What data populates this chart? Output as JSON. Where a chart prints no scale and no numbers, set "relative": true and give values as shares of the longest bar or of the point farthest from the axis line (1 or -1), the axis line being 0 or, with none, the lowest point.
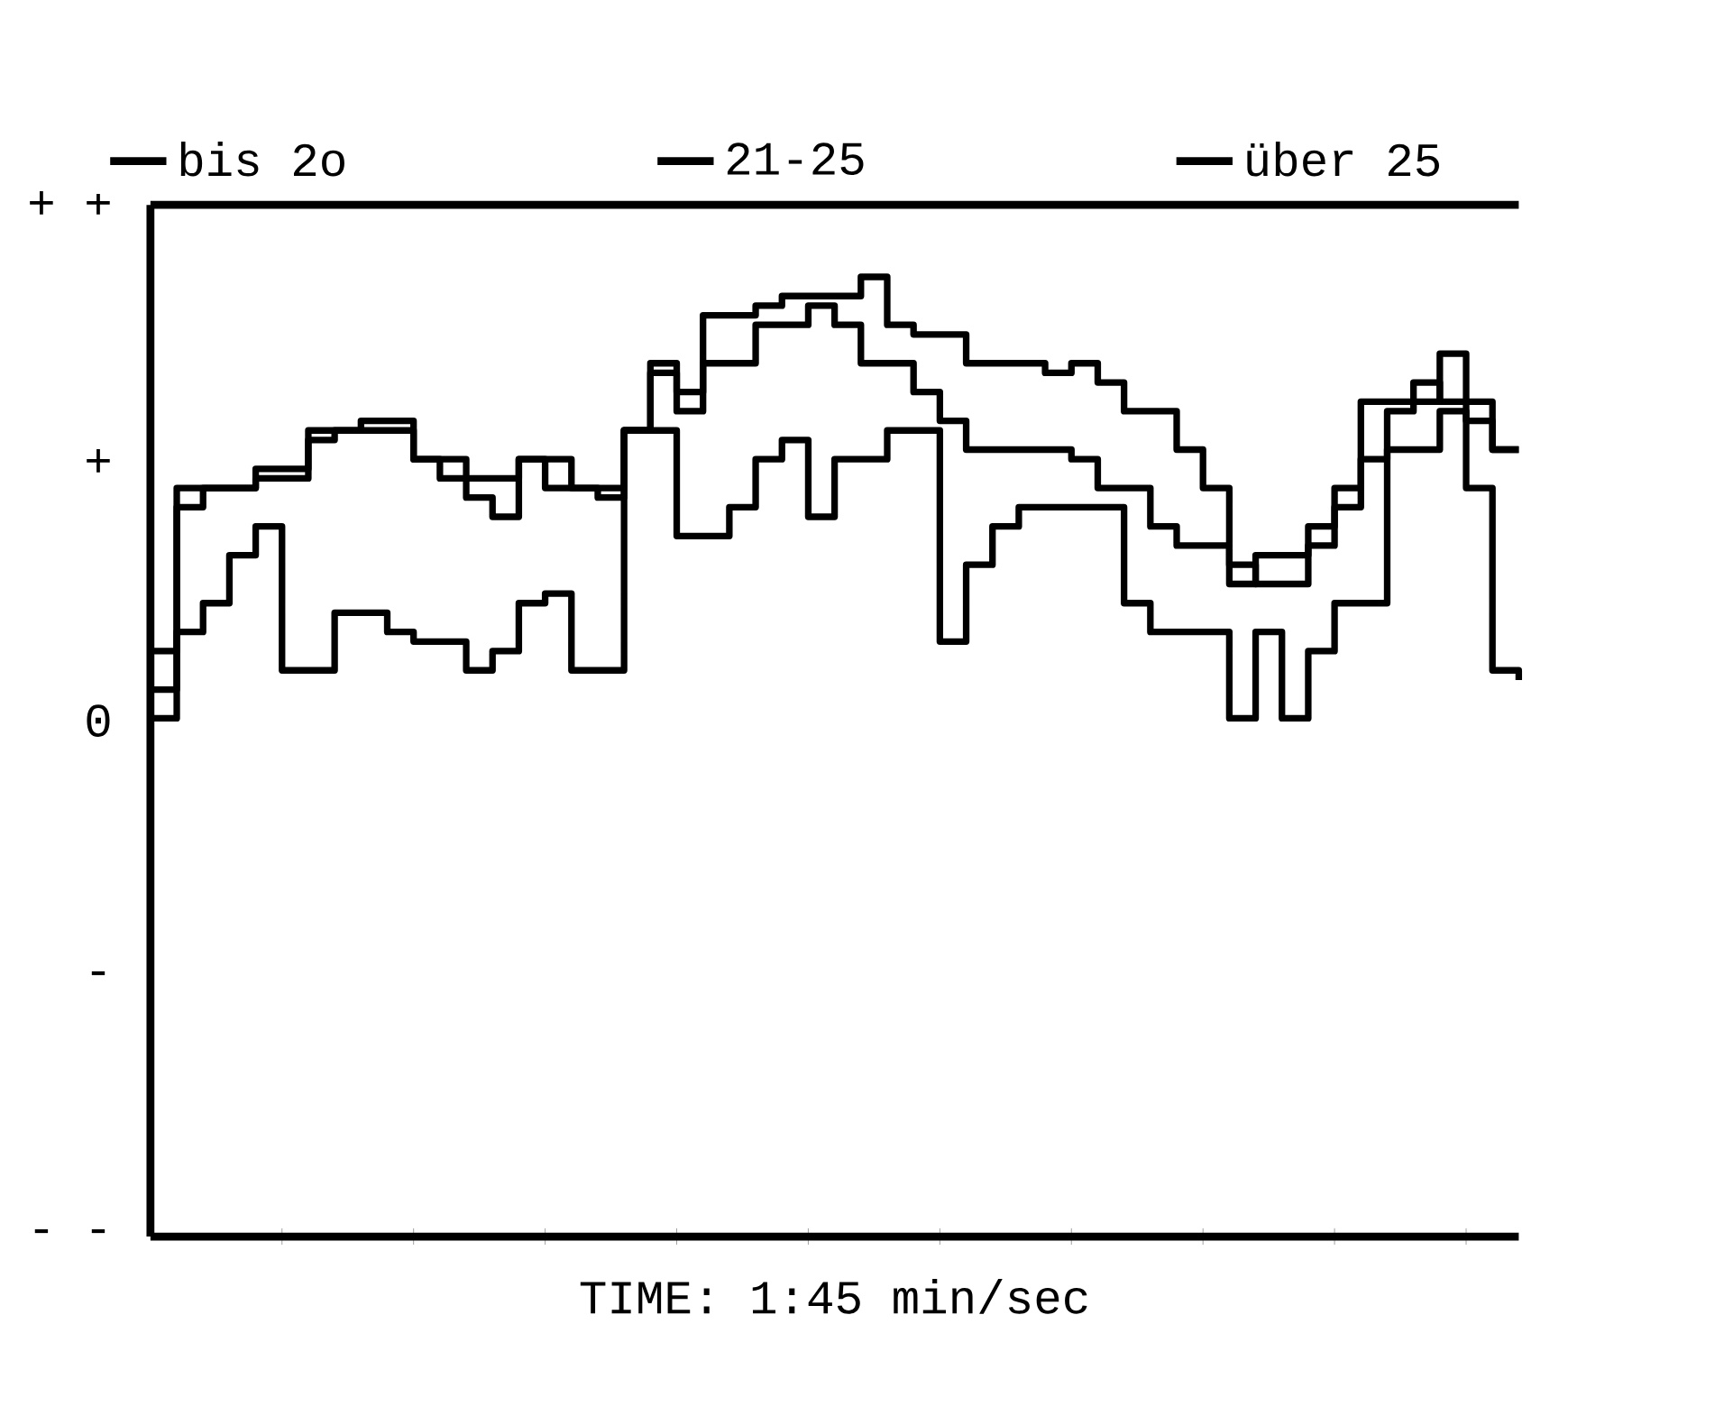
{
  "chart_data": {
    "type": "step",
    "xlabel": "TIME:  1:45   min/sec",
    "relative": true,
    "annotations": [
      "+ +",
      "+",
      "0",
      "-",
      "- -"
    ],
    "categories": [
      null,
      null,
      null,
      null,
      null,
      null,
      null,
      null,
      null,
      null,
      null,
      null,
      null,
      null,
      null,
      null,
      null,
      null,
      null,
      null,
      null,
      null,
      null,
      null,
      null,
      null,
      null,
      null,
      null,
      null,
      null,
      null,
      null,
      null,
      null,
      null,
      null,
      null,
      null,
      null,
      null,
      null,
      null,
      null,
      null,
      null,
      null,
      null,
      null,
      null,
      null,
      null,
      null
    ],
    "legend": "top",
    "marker": "none",
    "series": [
      {
        "name": "bis 2o",
        "color": "#000000",
        "values": [
          0.54,
          0.76,
          0.78,
          0.78,
          0.8,
          0.8,
          0.84,
          0.84,
          0.85,
          0.85,
          0.81,
          0.81,
          0.79,
          0.79,
          0.81,
          0.81,
          0.78,
          0.78,
          0.84,
          0.91,
          0.88,
          0.96,
          0.96,
          0.97,
          0.98,
          0.98,
          0.98,
          1,
          0.95,
          0.94,
          0.94,
          0.91,
          0.91,
          0.91,
          0.9,
          0.91,
          0.89,
          0.86,
          0.86,
          0.82,
          0.78,
          0.7,
          0.68,
          0.68,
          0.72,
          0.76,
          0.87,
          0.87,
          0.87,
          0.92,
          0.87,
          0.82,
          0.82
        ]
      },
      {
        "name": "21-25",
        "color": "#000000",
        "values": [
          0.61,
          0.78,
          0.78,
          0.78,
          0.79,
          0.79,
          0.83,
          0.84,
          0.84,
          0.84,
          0.81,
          0.79,
          0.77,
          0.75,
          0.81,
          0.78,
          0.78,
          0.77,
          0.84,
          0.9,
          0.86,
          0.91,
          0.91,
          0.95,
          0.95,
          0.97,
          0.95,
          0.91,
          0.91,
          0.88,
          0.85,
          0.82,
          0.82,
          0.82,
          0.82,
          0.81,
          0.78,
          0.78,
          0.74,
          0.72,
          0.72,
          0.68,
          0.71,
          0.71,
          0.74,
          0.78,
          0.81,
          0.86,
          0.89,
          0.87,
          0.85,
          0.82,
          0.82
        ]
      },
      {
        "name": "über 25",
        "color": "#000000",
        "values": [
          0.57,
          0.63,
          0.66,
          0.71,
          0.74,
          0.59,
          0.59,
          0.65,
          0.65,
          0.63,
          0.62,
          0.62,
          0.59,
          0.61,
          0.66,
          0.67,
          0.59,
          0.59,
          0.84,
          0.84,
          0.73,
          0.73,
          0.76,
          0.81,
          0.83,
          0.75,
          0.81,
          0.81,
          0.84,
          0.84,
          0.62,
          0.7,
          0.74,
          0.76,
          0.76,
          0.76,
          0.76,
          0.66,
          0.63,
          0.63,
          0.63,
          0.54,
          0.63,
          0.54,
          0.61,
          0.66,
          0.66,
          0.82,
          0.82,
          0.86,
          0.78,
          0.59,
          0.58
        ]
      }
    ]
  }
}
